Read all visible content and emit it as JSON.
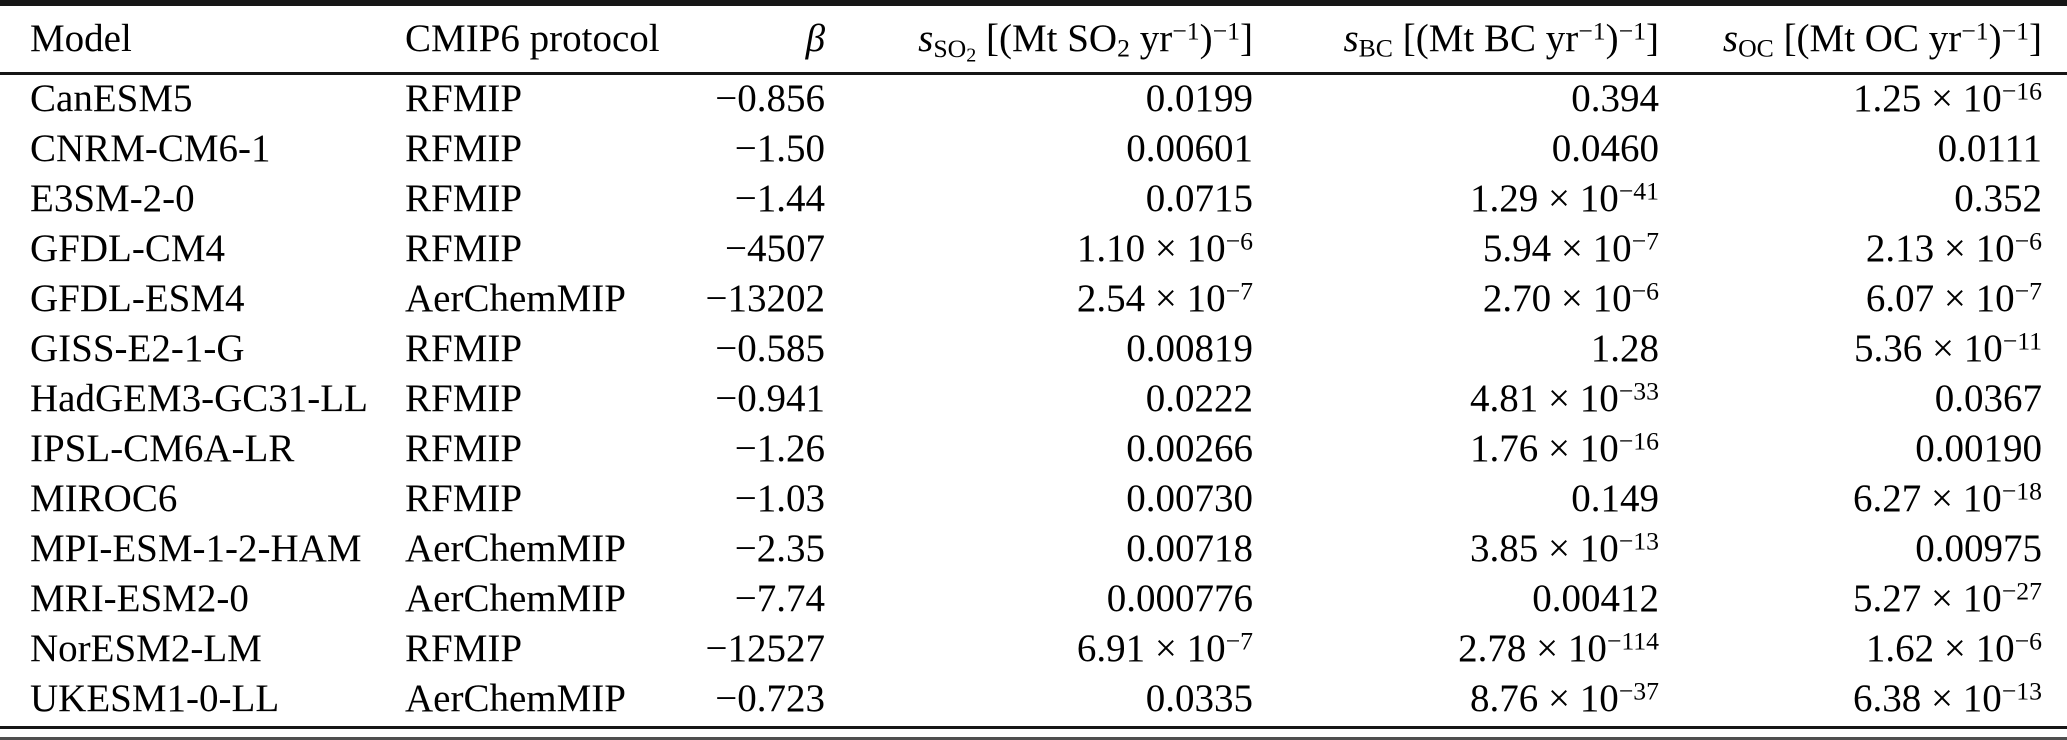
{
  "table": {
    "columns": [
      {
        "key": "model",
        "label": "Model"
      },
      {
        "key": "protocol",
        "label": "CMIP6 protocol"
      },
      {
        "key": "beta",
        "label": "β",
        "symbol": "β",
        "symbol_italic": true
      },
      {
        "key": "s_so2",
        "label": "s_SO2 [(Mt SO2 yr−1)−1]",
        "symbol": "s",
        "symbol_italic": true,
        "symbol_sub": "SO_{2}",
        "units": "[(Mt SO_{2} yr^{−1})^{−1}]"
      },
      {
        "key": "s_bc",
        "label": "s_BC [(Mt BC yr−1)−1]",
        "symbol": "s",
        "symbol_italic": true,
        "symbol_sub": "BC",
        "units": "[(Mt BC yr^{−1})^{−1}]"
      },
      {
        "key": "s_oc",
        "label": "s_OC [(Mt OC yr−1)−1]",
        "symbol": "s",
        "symbol_italic": true,
        "symbol_sub": "OC",
        "units": "[(Mt OC yr^{−1})^{−1}]"
      }
    ],
    "rows": [
      {
        "model": "CanESM5",
        "protocol": "RFMIP",
        "beta": "−0.856",
        "s_so2": "0.0199",
        "s_bc": "0.394",
        "s_oc": "1.25 × 10^{−16}"
      },
      {
        "model": "CNRM-CM6-1",
        "protocol": "RFMIP",
        "beta": "−1.50",
        "s_so2": "0.00601",
        "s_bc": "0.0460",
        "s_oc": "0.0111"
      },
      {
        "model": "E3SM-2-0",
        "protocol": "RFMIP",
        "beta": "−1.44",
        "s_so2": "0.0715",
        "s_bc": "1.29 × 10^{−41}",
        "s_oc": "0.352"
      },
      {
        "model": "GFDL-CM4",
        "protocol": "RFMIP",
        "beta": "−4507",
        "s_so2": "1.10 × 10^{−6}",
        "s_bc": "5.94 × 10^{−7}",
        "s_oc": "2.13 × 10^{−6}"
      },
      {
        "model": "GFDL-ESM4",
        "protocol": "AerChemMIP",
        "beta": "−13202",
        "s_so2": "2.54 × 10^{−7}",
        "s_bc": "2.70 × 10^{−6}",
        "s_oc": "6.07 × 10^{−7}"
      },
      {
        "model": "GISS-E2-1-G",
        "protocol": "RFMIP",
        "beta": "−0.585",
        "s_so2": "0.00819",
        "s_bc": "1.28",
        "s_oc": "5.36 × 10^{−11}"
      },
      {
        "model": "HadGEM3-GC31-LL",
        "protocol": "RFMIP",
        "beta": "−0.941",
        "s_so2": "0.0222",
        "s_bc": "4.81 × 10^{−33}",
        "s_oc": "0.0367"
      },
      {
        "model": "IPSL-CM6A-LR",
        "protocol": "RFMIP",
        "beta": "−1.26",
        "s_so2": "0.00266",
        "s_bc": "1.76 × 10^{−16}",
        "s_oc": "0.00190"
      },
      {
        "model": "MIROC6",
        "protocol": "RFMIP",
        "beta": "−1.03",
        "s_so2": "0.00730",
        "s_bc": "0.149",
        "s_oc": "6.27 × 10^{−18}"
      },
      {
        "model": "MPI-ESM-1-2-HAM",
        "protocol": "AerChemMIP",
        "beta": "−2.35",
        "s_so2": "0.00718",
        "s_bc": "3.85 × 10^{−13}",
        "s_oc": "0.00975"
      },
      {
        "model": "MRI-ESM2-0",
        "protocol": "AerChemMIP",
        "beta": "−7.74",
        "s_so2": "0.000776",
        "s_bc": "0.00412",
        "s_oc": "5.27 × 10^{−27}"
      },
      {
        "model": "NorESM2-LM",
        "protocol": "RFMIP",
        "beta": "−12527",
        "s_so2": "6.91 × 10^{−7}",
        "s_bc": "2.78 × 10^{−114}",
        "s_oc": "1.62 × 10^{−6}"
      },
      {
        "model": "UKESM1-0-LL",
        "protocol": "AerChemMIP",
        "beta": "−0.723",
        "s_so2": "0.0335",
        "s_bc": "8.76 × 10^{−37}",
        "s_oc": "6.38 × 10^{−13}"
      }
    ],
    "rules": {
      "top_color": "#161616",
      "header_color": "#161616",
      "bottom_color": "#161616",
      "edge_color": "#4f4f4f"
    }
  }
}
